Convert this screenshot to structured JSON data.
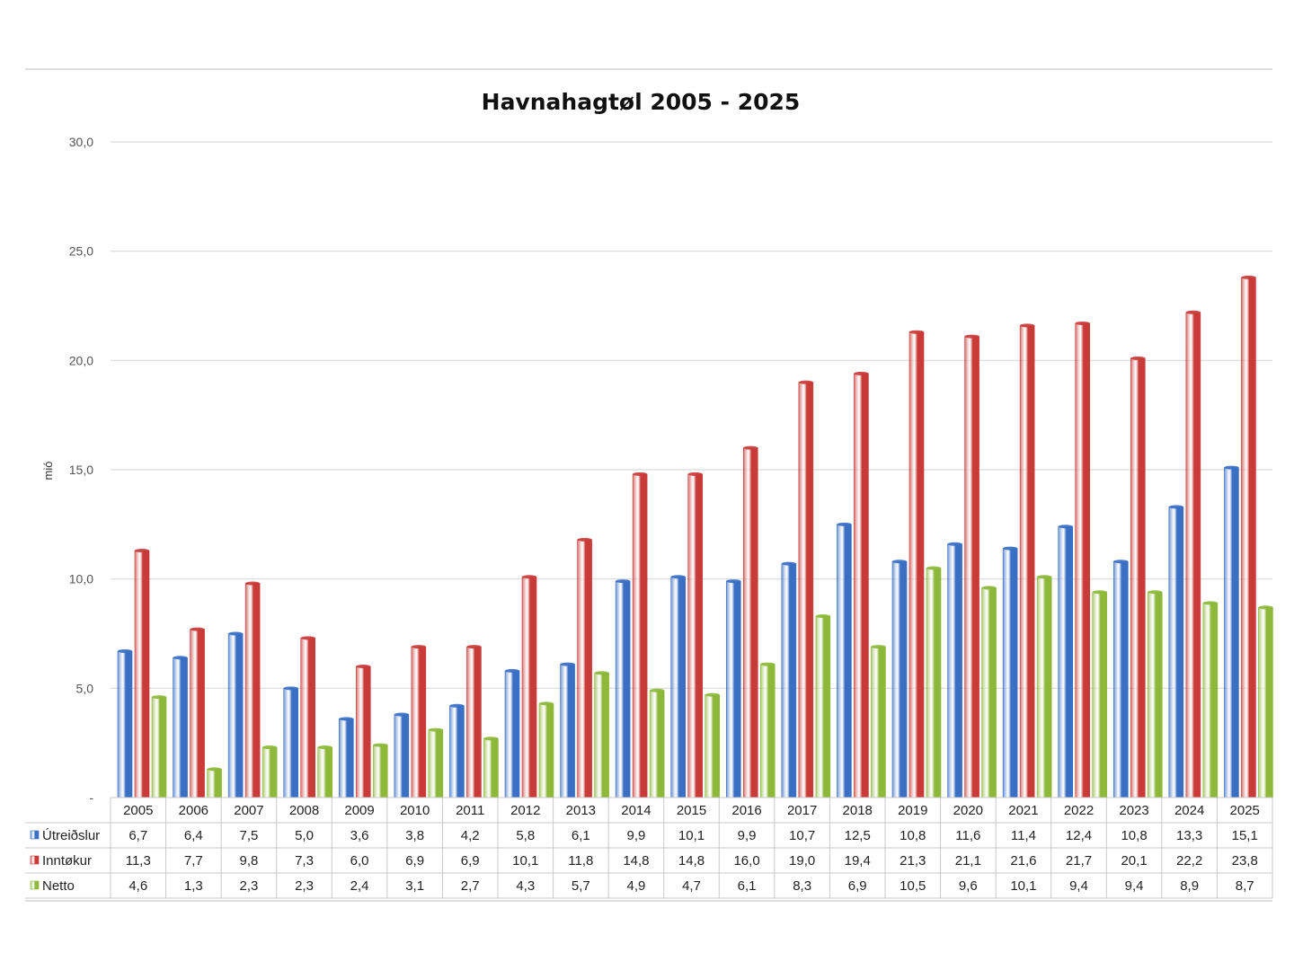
{
  "chart_data": {
    "type": "bar",
    "title": "Havnahagtøl 2005 - 2025",
    "ylabel": "mió",
    "ylim": [
      0,
      30
    ],
    "yticks": [
      0,
      5,
      10,
      15,
      20,
      25,
      30
    ],
    "ytick_labels": [
      "-",
      "5,0",
      "10,0",
      "15,0",
      "20,0",
      "25,0",
      "30,0"
    ],
    "grid": true,
    "legend": "data-table",
    "categories": [
      "2005",
      "2006",
      "2007",
      "2008",
      "2009",
      "2010",
      "2011",
      "2012",
      "2013",
      "2014",
      "2015",
      "2016",
      "2017",
      "2018",
      "2019",
      "2020",
      "2021",
      "2022",
      "2023",
      "2024",
      "2025"
    ],
    "series": [
      {
        "name": "Útreiðslur",
        "color": "#3a6fc4",
        "values": [
          6.7,
          6.4,
          7.5,
          5.0,
          3.6,
          3.8,
          4.2,
          5.8,
          6.1,
          9.9,
          10.1,
          9.9,
          10.7,
          12.5,
          10.8,
          11.6,
          11.4,
          12.4,
          10.8,
          13.3,
          15.1
        ],
        "labels": [
          "6,7",
          "6,4",
          "7,5",
          "5,0",
          "3,6",
          "3,8",
          "4,2",
          "5,8",
          "6,1",
          "9,9",
          "10,1",
          "9,9",
          "10,7",
          "12,5",
          "10,8",
          "11,6",
          "11,4",
          "12,4",
          "10,8",
          "13,3",
          "15,1"
        ]
      },
      {
        "name": "Inntøkur",
        "color": "#c93b38",
        "values": [
          11.3,
          7.7,
          9.8,
          7.3,
          6.0,
          6.9,
          6.9,
          10.1,
          11.8,
          14.8,
          14.8,
          16.0,
          19.0,
          19.4,
          21.3,
          21.1,
          21.6,
          21.7,
          20.1,
          22.2,
          23.8
        ],
        "labels": [
          "11,3",
          "7,7",
          "9,8",
          "7,3",
          "6,0",
          "6,9",
          "6,9",
          "10,1",
          "11,8",
          "14,8",
          "14,8",
          "16,0",
          "19,0",
          "19,4",
          "21,3",
          "21,1",
          "21,6",
          "21,7",
          "20,1",
          "22,2",
          "23,8"
        ]
      },
      {
        "name": "Netto",
        "color": "#8db83a",
        "values": [
          4.6,
          1.3,
          2.3,
          2.3,
          2.4,
          3.1,
          2.7,
          4.3,
          5.7,
          4.9,
          4.7,
          6.1,
          8.3,
          6.9,
          10.5,
          9.6,
          10.1,
          9.4,
          9.4,
          8.9,
          8.7
        ],
        "labels": [
          "4,6",
          "1,3",
          "2,3",
          "2,3",
          "2,4",
          "3,1",
          "2,7",
          "4,3",
          "5,7",
          "4,9",
          "4,7",
          "6,1",
          "8,3",
          "6,9",
          "10,5",
          "9,6",
          "10,1",
          "9,4",
          "9,4",
          "8,9",
          "8,7"
        ]
      }
    ]
  }
}
